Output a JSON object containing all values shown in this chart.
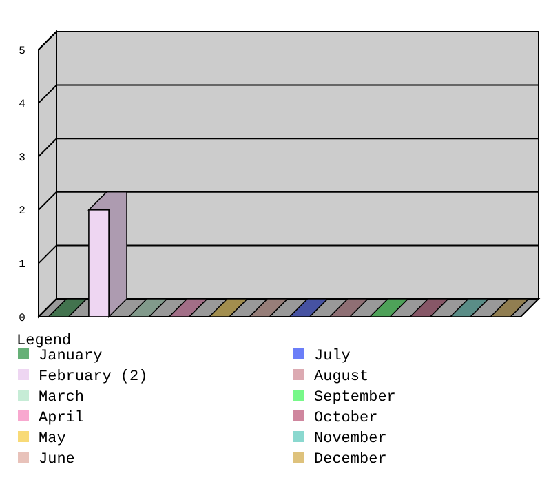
{
  "chart_data": {
    "type": "bar",
    "categories": [
      null,
      null,
      null,
      null,
      null,
      null,
      null,
      null,
      null,
      null,
      null,
      null
    ],
    "series": [
      {
        "name": "January",
        "color": "#66b077",
        "values": [
          0,
          null,
          null,
          null,
          null,
          null,
          null,
          null,
          null,
          null,
          null,
          null
        ]
      },
      {
        "name": "February (2)",
        "color": "#eed6f2",
        "values": [
          null,
          2,
          null,
          null,
          null,
          null,
          null,
          null,
          null,
          null,
          null,
          null
        ]
      },
      {
        "name": "March",
        "color": "#c6ecd6",
        "values": [
          null,
          null,
          0,
          null,
          null,
          null,
          null,
          null,
          null,
          null,
          null,
          null
        ]
      },
      {
        "name": "April",
        "color": "#f8a8cf",
        "values": [
          null,
          null,
          null,
          0,
          null,
          null,
          null,
          null,
          null,
          null,
          null,
          null
        ]
      },
      {
        "name": "May",
        "color": "#f8da77",
        "values": [
          null,
          null,
          null,
          null,
          0,
          null,
          null,
          null,
          null,
          null,
          null,
          null
        ]
      },
      {
        "name": "June",
        "color": "#e8c2ba",
        "values": [
          null,
          null,
          null,
          null,
          null,
          0,
          null,
          null,
          null,
          null,
          null,
          null
        ]
      },
      {
        "name": "July",
        "color": "#6b7ef8",
        "values": [
          null,
          null,
          null,
          null,
          null,
          null,
          0,
          null,
          null,
          null,
          null,
          null
        ]
      },
      {
        "name": "August",
        "color": "#dcaab2",
        "values": [
          null,
          null,
          null,
          null,
          null,
          null,
          null,
          0,
          null,
          null,
          null,
          null
        ]
      },
      {
        "name": "September",
        "color": "#77f889",
        "values": [
          null,
          null,
          null,
          null,
          null,
          null,
          null,
          null,
          0,
          null,
          null,
          null
        ]
      },
      {
        "name": "October",
        "color": "#cf869e",
        "values": [
          null,
          null,
          null,
          null,
          null,
          null,
          null,
          null,
          null,
          0,
          null,
          null
        ]
      },
      {
        "name": "November",
        "color": "#8ad8cf",
        "values": [
          null,
          null,
          null,
          null,
          null,
          null,
          null,
          null,
          null,
          null,
          0,
          null
        ]
      },
      {
        "name": "December",
        "color": "#dec27c",
        "values": [
          null,
          null,
          null,
          null,
          null,
          null,
          null,
          null,
          null,
          null,
          null,
          0
        ]
      }
    ],
    "ylim": [
      0,
      5
    ],
    "yticks": [
      0,
      1,
      2,
      3,
      4,
      5
    ],
    "grid": "y",
    "legend": "bottom",
    "legend_title": "Legend"
  }
}
